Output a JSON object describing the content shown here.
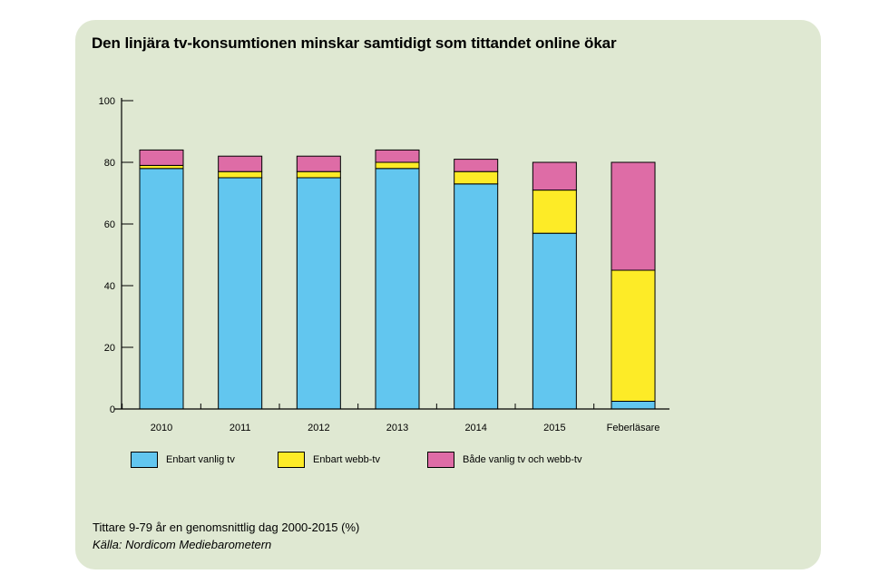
{
  "header": {
    "title": "Den linjära tv-konsumtionen minskar samtidigt som tittandet online ökar"
  },
  "chart_data": {
    "type": "bar",
    "stacked": true,
    "title": "Den linjära tv-konsumtionen minskar samtidigt som tittandet online ökar",
    "xlabel": "",
    "ylabel": "",
    "ylim": [
      0,
      100
    ],
    "yticks": [
      0,
      20,
      40,
      60,
      80,
      100
    ],
    "categories": [
      "2010",
      "2011",
      "2012",
      "2013",
      "2014",
      "2015",
      "Feberläsare"
    ],
    "series": [
      {
        "name": "Enbart vanlig tv",
        "color": "#62c6ef",
        "values": [
          78,
          75,
          75,
          78,
          73,
          57,
          2.5
        ]
      },
      {
        "name": "Enbart webb-tv",
        "color": "#fdeb27",
        "values": [
          1,
          2,
          2,
          2,
          4,
          14,
          42.5
        ]
      },
      {
        "name": "Både vanlig tv och webb-tv",
        "color": "#de6ca6",
        "values": [
          5,
          5,
          5,
          4,
          4,
          9,
          35
        ]
      }
    ],
    "legend_position": "bottom"
  },
  "footer": {
    "note": "Tittare 9-79 år en genomsnittlig dag 2000-2015 (%)",
    "source": "Källa: Nordicom Mediebarometern"
  },
  "colors": {
    "panel_background": "#dfe8d2"
  }
}
